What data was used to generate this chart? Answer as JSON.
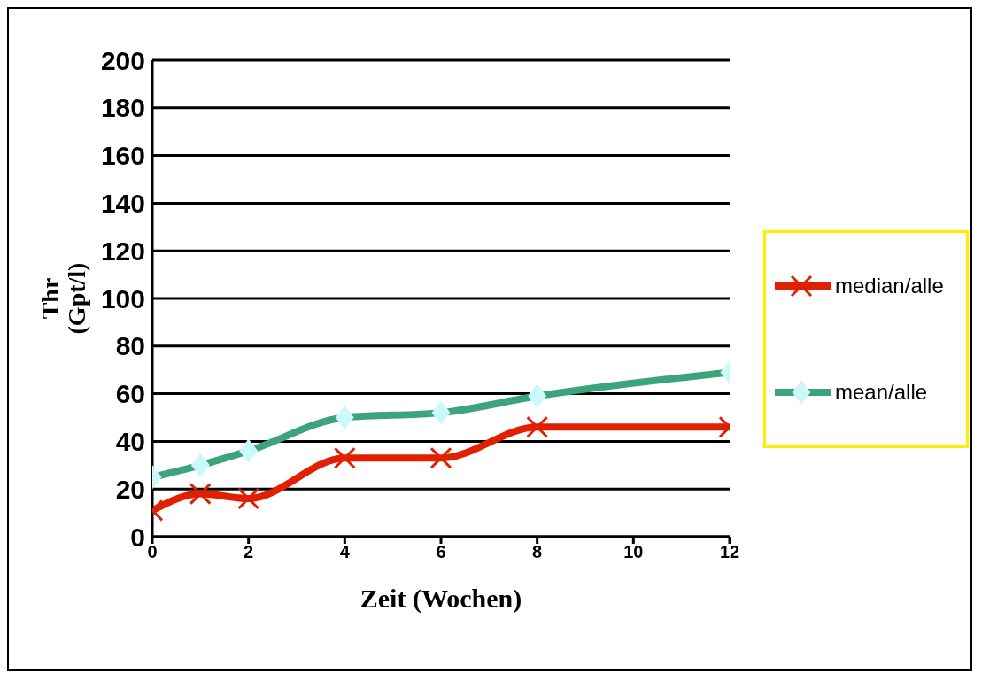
{
  "chart_data": {
    "type": "line",
    "xlabel": "Zeit (Wochen)",
    "ylabel": "Thr (Gpt/l)",
    "x": [
      0,
      1,
      2,
      4,
      6,
      8,
      12
    ],
    "series": [
      {
        "name": "median/alle",
        "color": "#e02000",
        "values": [
          11,
          18,
          16,
          33,
          33,
          46,
          46
        ],
        "marker": "cross"
      },
      {
        "name": "mean/alle",
        "color": "#3ca37a",
        "values": [
          25,
          30,
          36,
          50,
          52,
          59,
          69
        ],
        "marker": "diamond"
      }
    ],
    "xlim": [
      0,
      12
    ],
    "xticks": [
      0,
      2,
      4,
      6,
      8,
      10,
      12
    ],
    "ylim": [
      0,
      200
    ],
    "yticks": [
      0,
      20,
      40,
      60,
      80,
      100,
      120,
      140,
      160,
      180,
      200
    ],
    "grid": "y",
    "legend": "right",
    "line_style": "solid"
  }
}
